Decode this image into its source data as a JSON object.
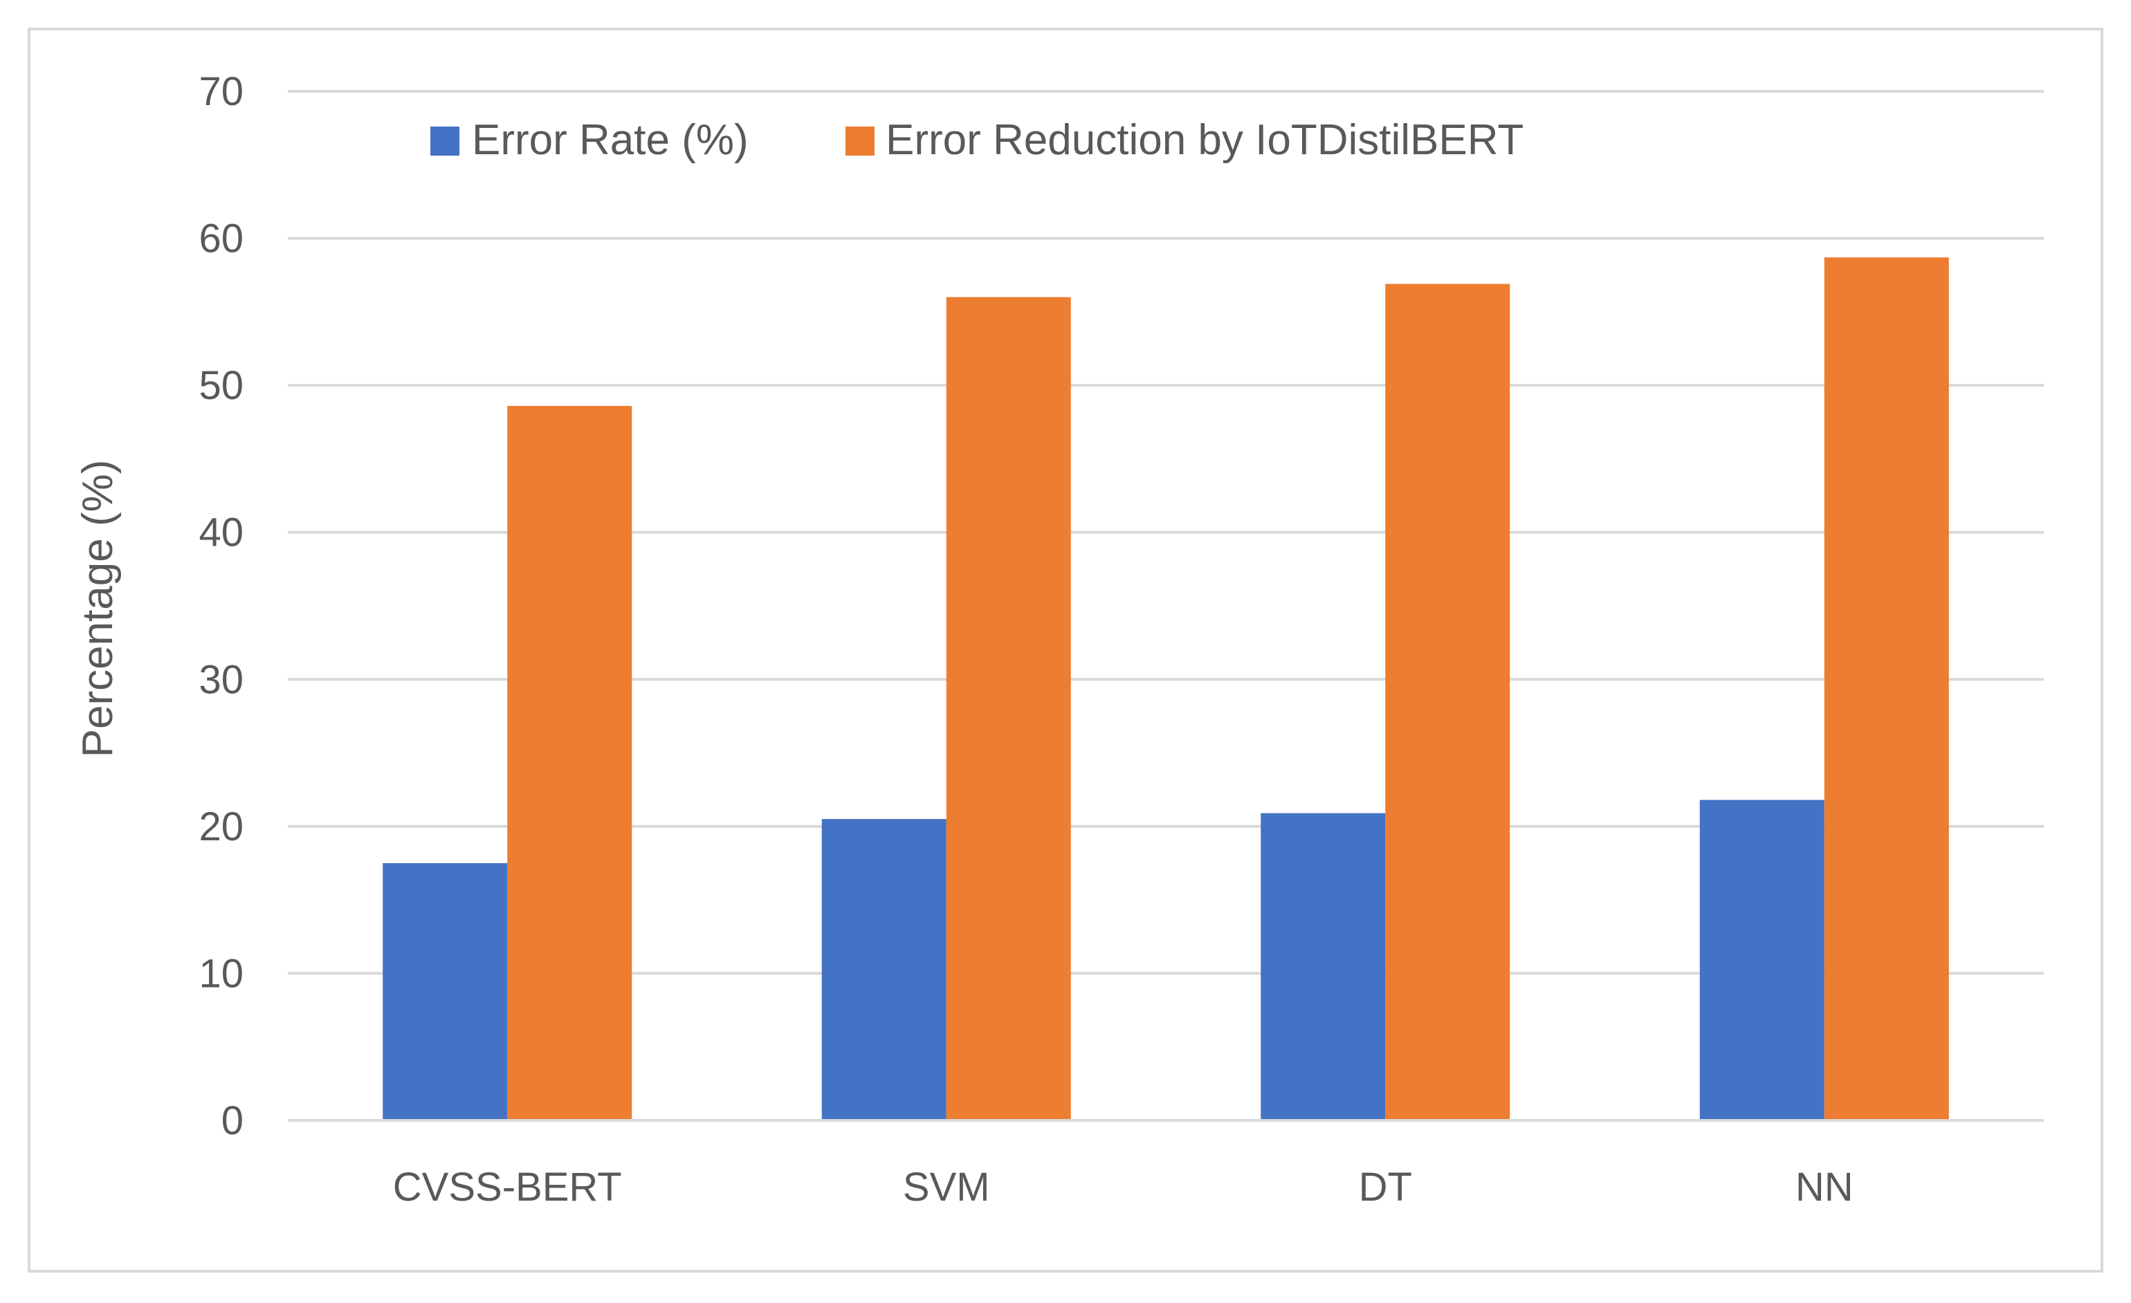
{
  "chart_data": {
    "type": "bar",
    "title": "",
    "xlabel": "",
    "ylabel": "Percentage (%)",
    "ylim": [
      0,
      70
    ],
    "yticks": [
      0,
      10,
      20,
      30,
      40,
      50,
      60,
      70
    ],
    "grid": true,
    "legend_position": "top",
    "categories": [
      "CVSS-BERT",
      "SVM",
      "DT",
      "NN"
    ],
    "series": [
      {
        "name": "Error Rate (%)",
        "color": "#4472c4",
        "values": [
          17.5,
          20.5,
          20.9,
          21.8
        ]
      },
      {
        "name": "Error Reduction by IoTDistilBERT",
        "color": "#ed7d31",
        "values": [
          48.6,
          56.0,
          56.9,
          58.7
        ]
      }
    ]
  }
}
